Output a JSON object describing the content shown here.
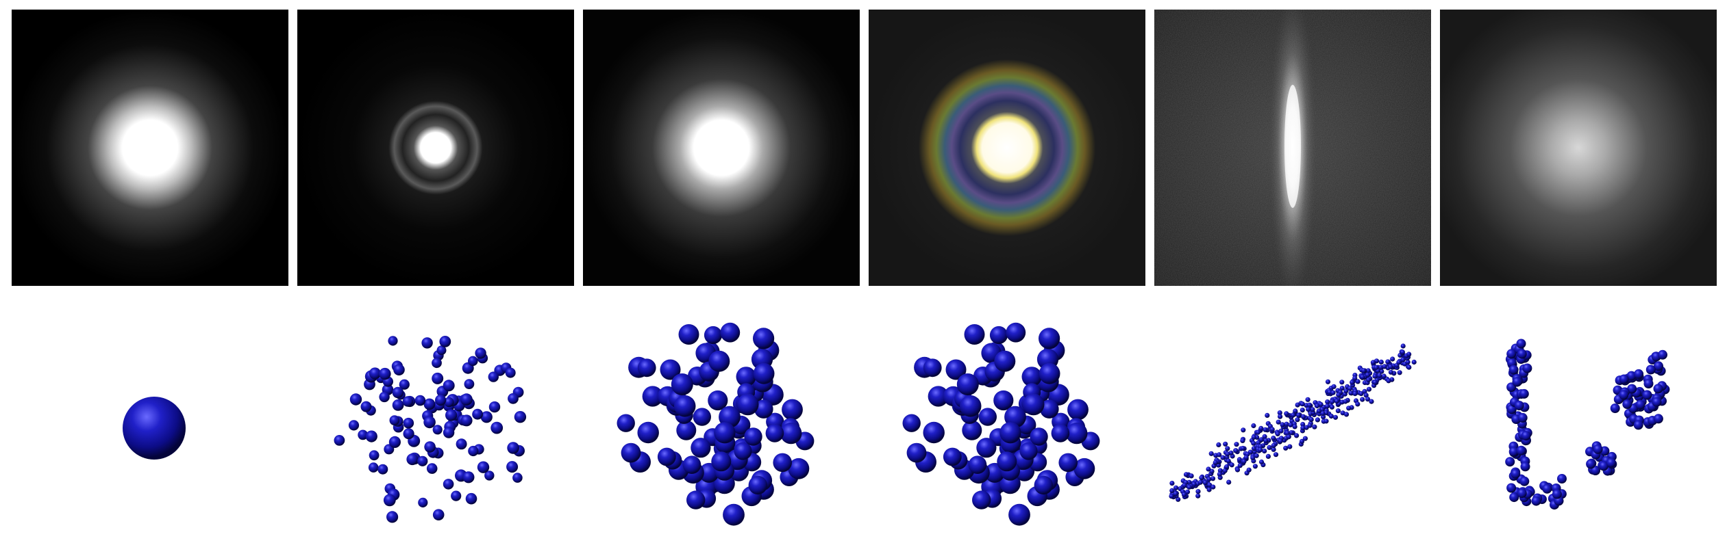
{
  "figure": {
    "top_row": [
      {
        "kind": "diffraction-pattern",
        "description_key": "soft-disc"
      },
      {
        "kind": "diffraction-pattern",
        "description_key": "disc-with-rings"
      },
      {
        "kind": "diffraction-pattern",
        "description_key": "bright-disc"
      },
      {
        "kind": "diffraction-pattern",
        "description_key": "color-halo"
      },
      {
        "kind": "diffraction-pattern",
        "description_key": "vertical-streak"
      },
      {
        "kind": "diffraction-pattern",
        "description_key": "diffuse-glow"
      }
    ],
    "bottom_row": [
      {
        "kind": "particle-cluster",
        "shape": "single-sphere",
        "count": 1
      },
      {
        "kind": "particle-cluster",
        "shape": "sparse-ball",
        "count": 110
      },
      {
        "kind": "particle-cluster",
        "shape": "dense-ball",
        "count": 85
      },
      {
        "kind": "particle-cluster",
        "shape": "dense-ball",
        "count": 85
      },
      {
        "kind": "particle-cluster",
        "shape": "elongated-rod",
        "count": 420
      },
      {
        "kind": "particle-cluster",
        "shape": "split-aggregates",
        "count": 160
      }
    ],
    "colors": {
      "background": "#ffffff",
      "panel_bg": "#000000",
      "sphere_base": "#10109a",
      "sphere_highlight": "#5a5aff",
      "sphere_dark": "#05053a"
    }
  }
}
